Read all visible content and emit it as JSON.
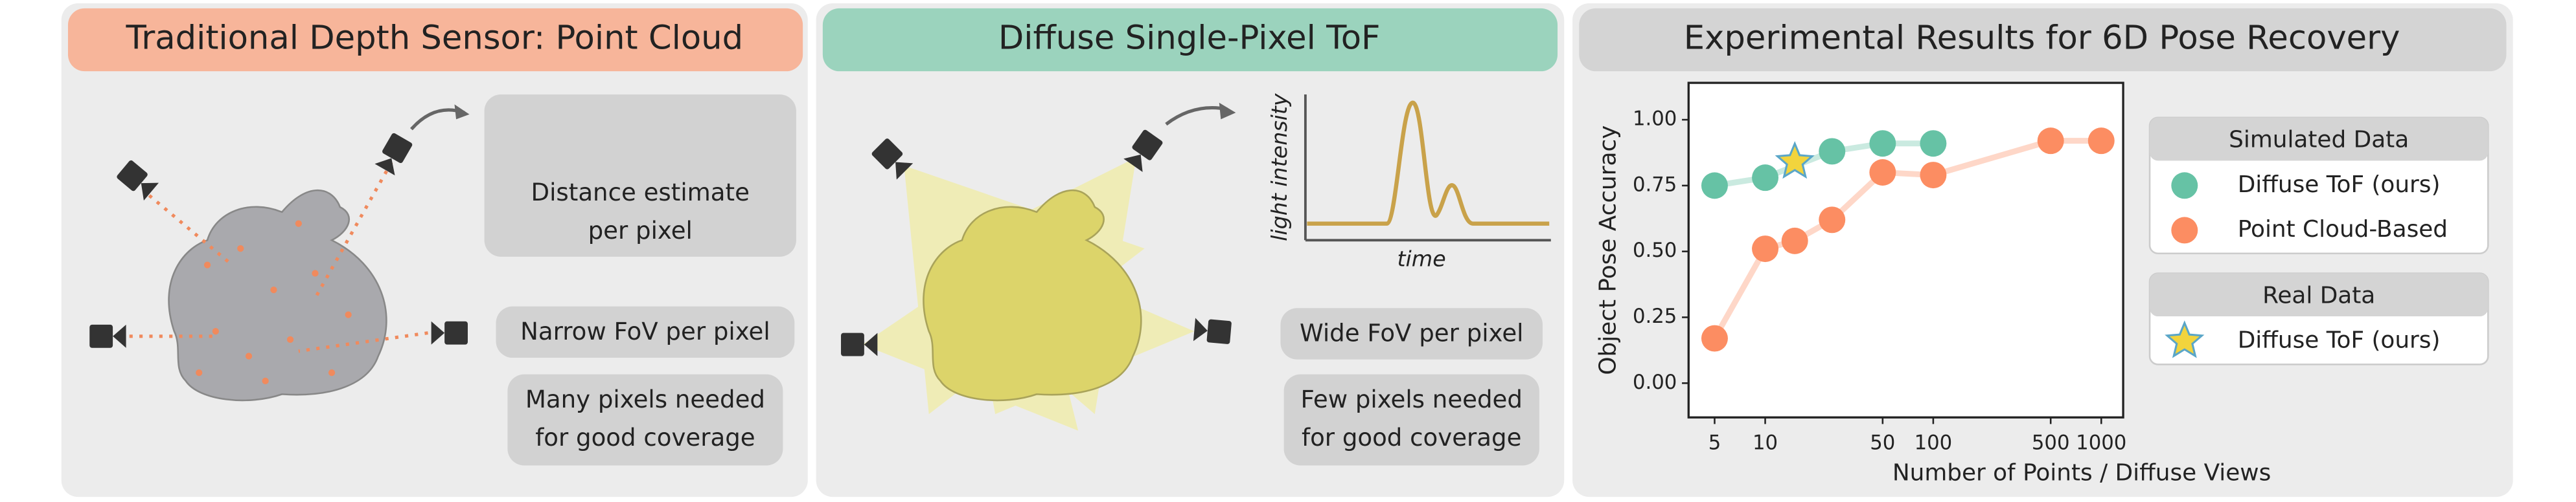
{
  "panels": [
    {
      "title": "Traditional Depth Sensor: Point Cloud",
      "notes": [
        [
          "Distance estimate",
          "per pixel"
        ],
        [
          "Narrow FoV per pixel"
        ],
        [
          "Many pixels needed",
          "for good coverage"
        ]
      ]
    },
    {
      "title": "Diffuse Single-Pixel ToF",
      "notes": [
        [
          "Wide FoV per pixel"
        ],
        [
          "Few pixels needed",
          "for good coverage"
        ]
      ],
      "plot_labels": {
        "y": "light intensity",
        "x": "time"
      }
    }
  ],
  "chart_data": {
    "type": "line",
    "title": "Experimental Results for 6D Pose Recovery",
    "x_label": "Number of Points / Diffuse Views",
    "y_label": "Object Pose Accuracy",
    "xscale": "log",
    "xlim": [
      3.5,
      1350
    ],
    "ylim": [
      -0.13,
      1.14
    ],
    "xticks": [
      5,
      10,
      50,
      100,
      500,
      1000
    ],
    "yticks": [
      {
        "value": 0,
        "label": "0.00"
      },
      {
        "value": 0.25,
        "label": "0.25"
      },
      {
        "value": 0.5,
        "label": "0.50"
      },
      {
        "value": 0.75,
        "label": "0.75"
      },
      {
        "value": 1,
        "label": "1.00"
      }
    ],
    "grid": false,
    "series": [
      {
        "name": "Diffuse ToF (ours)",
        "group": "Simulated Data",
        "color": "#66c2a5",
        "marker": "circle",
        "x": [
          5,
          10,
          25,
          50,
          100
        ],
        "values": [
          0.75,
          0.78,
          0.88,
          0.91,
          0.91
        ]
      },
      {
        "name": "Point Cloud-Based",
        "group": "Simulated Data",
        "color": "#fc8d62",
        "marker": "circle",
        "x": [
          5,
          10,
          15,
          25,
          50,
          100,
          500,
          1000
        ],
        "values": [
          0.17,
          0.51,
          0.54,
          0.62,
          0.8,
          0.79,
          0.92,
          0.92
        ]
      },
      {
        "name": "Diffuse ToF (ours)",
        "group": "Real Data",
        "color": "#f2d43d",
        "marker": "star",
        "x": [
          15
        ],
        "values": [
          0.84
        ]
      }
    ]
  }
}
